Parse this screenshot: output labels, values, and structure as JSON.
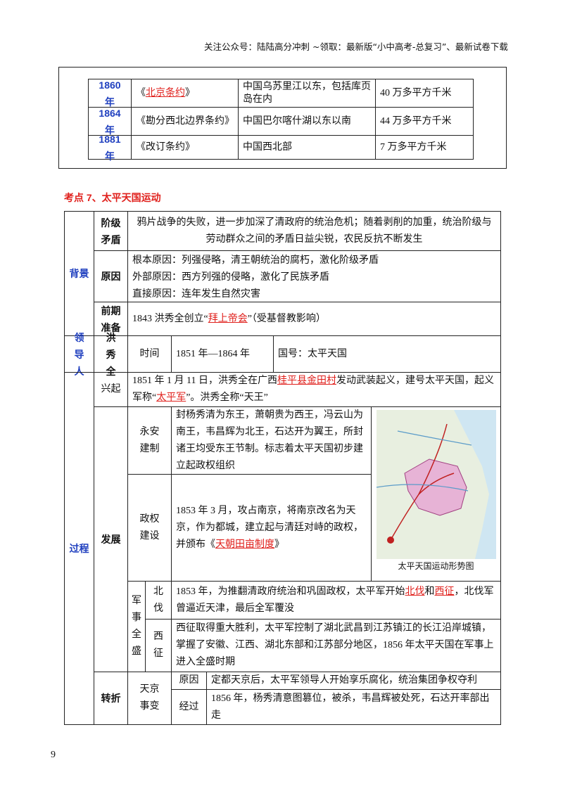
{
  "header": "关注公众号：陆陆高分冲刺  ~领取：最新版“小中高考-总复习”、最新试卷下载",
  "treaty_table": {
    "rows": [
      {
        "year": "1860 年",
        "treaty": [
          "《",
          "北京条约",
          "》"
        ],
        "territory": "中国乌苏里江以东，包括库页岛在内",
        "area": "40 万多平方千米"
      },
      {
        "year": "1864 年",
        "treaty": [
          "《勘分西北边界条约》"
        ],
        "territory": "中国巴尔喀什湖以东以南",
        "area": "44 万多平方千米"
      },
      {
        "year": "1881 年",
        "treaty": [
          "《改订条约》"
        ],
        "territory": "中国西北部",
        "area": "7 万多平方千米"
      }
    ]
  },
  "section_title": "考点 7、太平天国运动",
  "main_table": {
    "background": {
      "label": "背景",
      "class_conflict": {
        "label": "阶级矛盾",
        "text": "鸦片战争的失败，进一步加深了清政府的统治危机；随着剥削的加重，统治阶级与劳动群众之间的矛盾日益尖锐，农民反抗不断发生"
      },
      "causes": {
        "label": "原因",
        "lines": [
          "根本原因：列强侵略，清王朝统治的腐朽，激化阶级矛盾",
          "外部原因：西方列强的侵略，激化了民族矛盾",
          "直接原因：连年发生自然灾害"
        ]
      },
      "preparation": {
        "label": "前期准备",
        "text": [
          "1843 洪秀全创立“",
          "拜上帝会",
          "”（受基督教影响）"
        ]
      }
    },
    "leader": {
      "label": "领导人",
      "name": "洪秀全",
      "time_label": "时间",
      "time": "1851 年—1864 年",
      "state": "国号：太平天国"
    },
    "process": {
      "label": "过程",
      "rise": {
        "label": "兴起",
        "text": [
          "1851 年 1 月 11 日，洪秀全在广西",
          "桂平县金田村",
          "发动武装起义，建号太平天国，起义军称“",
          "太平军",
          "”。洪秀全称“天王”"
        ]
      },
      "development": {
        "label": "发展",
        "yongan": {
          "label": "永安建制",
          "text": "封杨秀清为东王，萧朝贵为西王，冯云山为南王，韦昌辉为北王，石达开为翼王，所封诸王均受东王节制。标志着太平天国初步建立起政权组织"
        },
        "regime": {
          "label": "政权建设",
          "text": [
            "1853 年 3 月，攻占南京，将南京改名为天京，作为都城，建立起与清廷对峙的政权，并颁布《",
            "天朝田亩制度",
            "》"
          ]
        },
        "map_caption": "太平天国运动形势图",
        "military": {
          "label": "军事全盛",
          "north": {
            "label": "北伐",
            "text": [
              "1853 年，为推翻清政府统治和巩固政权，太平军开始",
              "北伐",
              "和",
              "西征",
              "，北伐军曾逼近天津，最后全军覆没"
            ]
          },
          "west": {
            "label": "西征",
            "text": "西征取得重大胜利，太平军控制了湖北武昌到江苏镇江的长江沿岸城镇，掌握了安徽、江西、湖北东部和江苏部分地区，1856 年太平天国在军事上进入全盛时期"
          }
        }
      },
      "turning": {
        "label": "转折",
        "event": "天京事变",
        "cause": {
          "label": "原因",
          "text": "定都天京后，太平军领导人开始享乐腐化，统治集团争权夺利"
        },
        "course": {
          "label": "经过",
          "text": "1856 年，杨秀清意图篡位，被杀，韦昌辉被处死，石达开率部出走"
        }
      }
    }
  },
  "page_number": "9"
}
